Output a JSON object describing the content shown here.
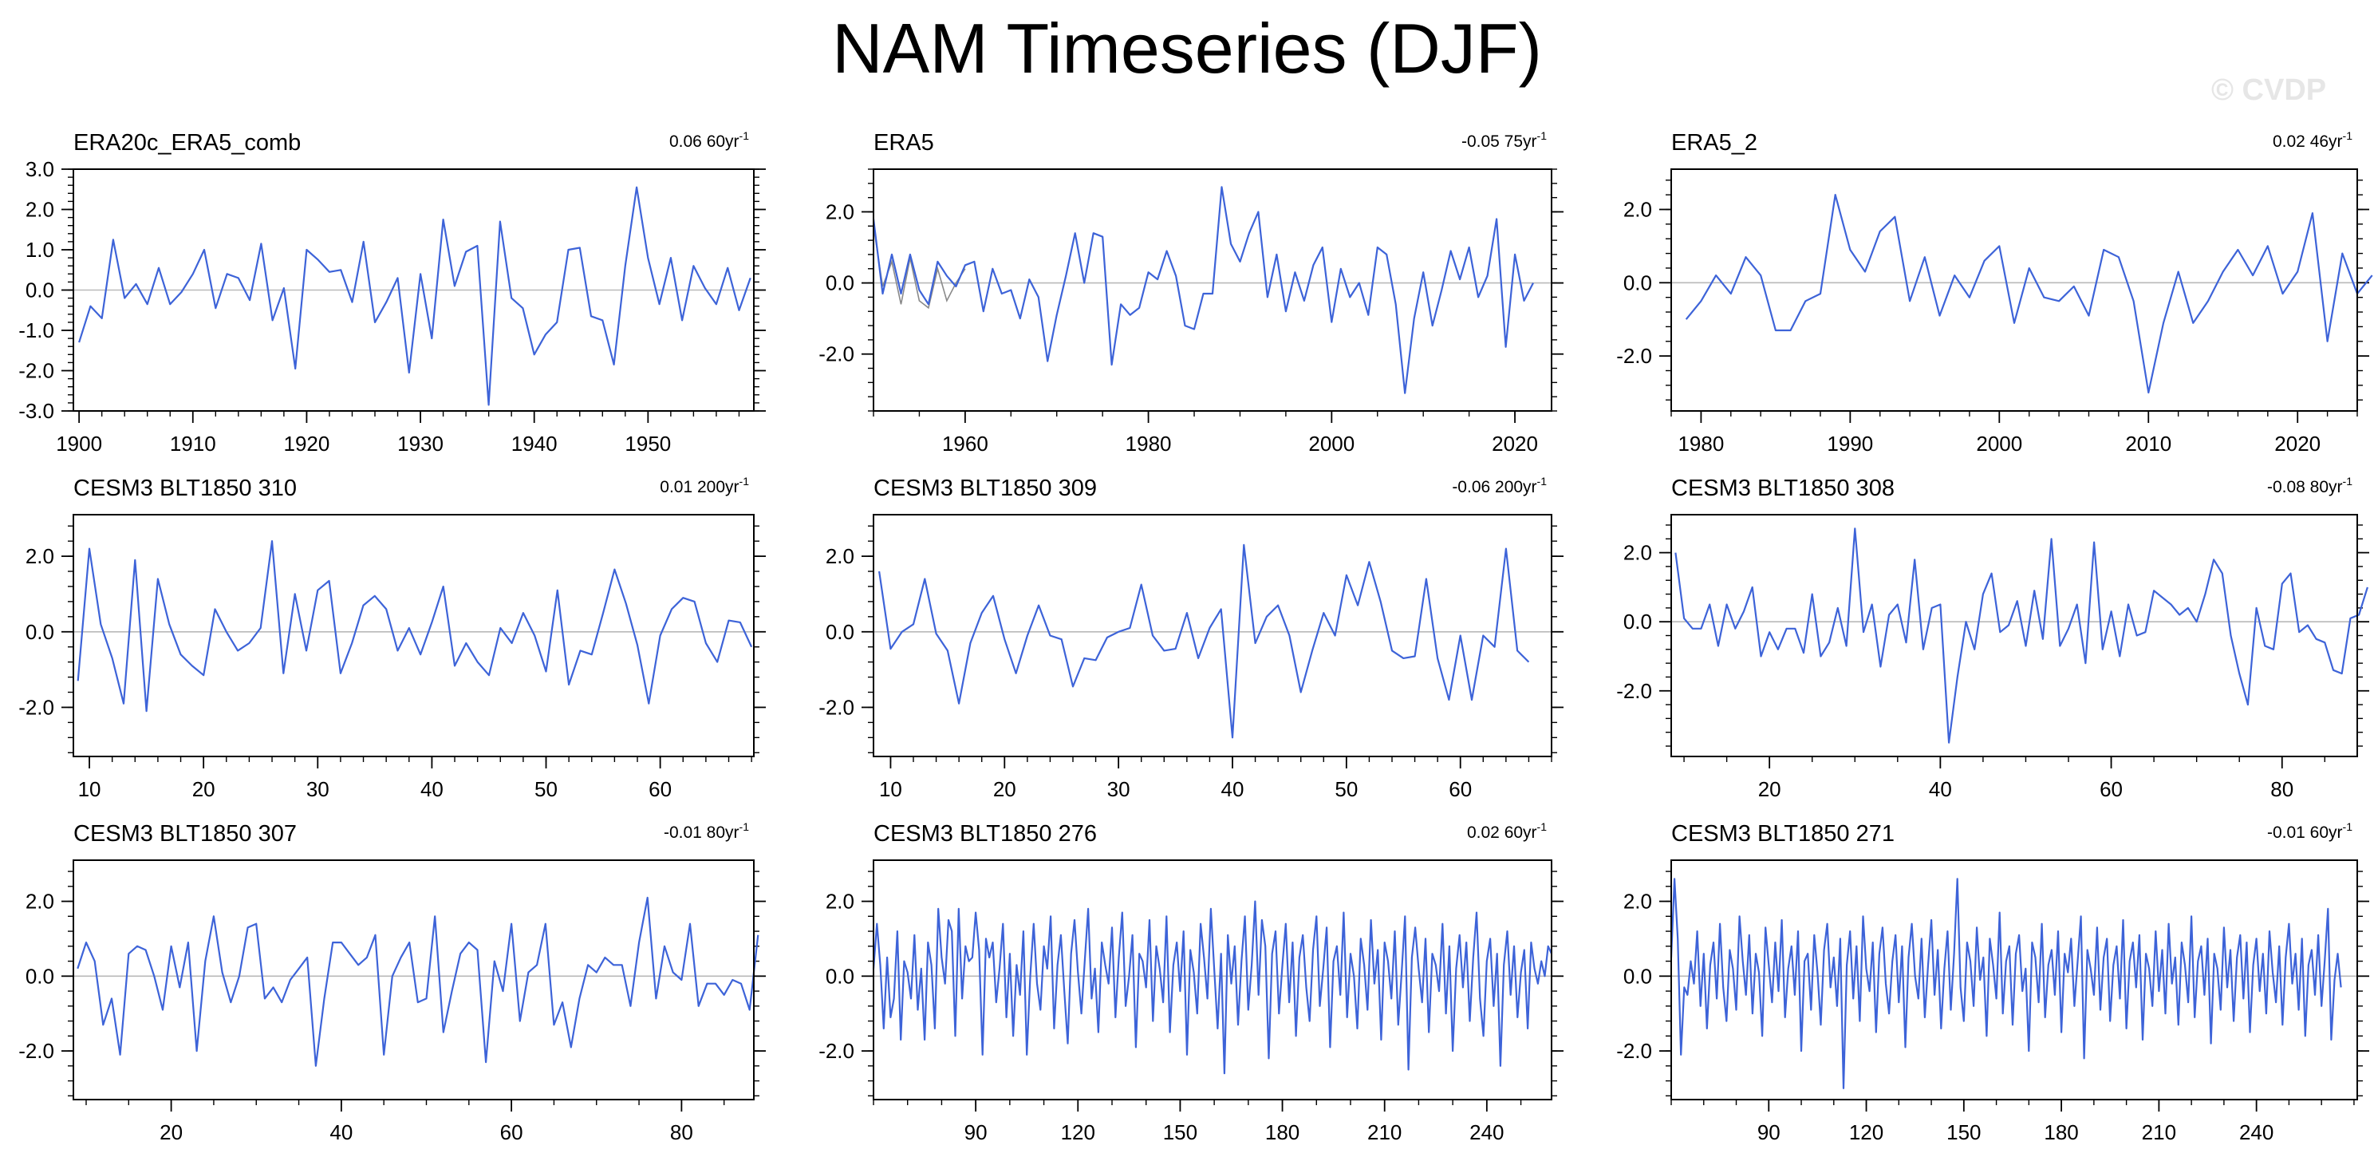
{
  "title": "NAM Timeseries (DJF)",
  "watermark": "© CVDP",
  "colors": {
    "line": "#3d63d8",
    "zero": "#b9b9b9",
    "axis": "#000000"
  },
  "chart_data": [
    {
      "type": "line",
      "name": "ERA20c_ERA5_comb",
      "trend_value": "0.06 60yr",
      "trend_unit_exp": "-1",
      "x_start": 1900,
      "x_step": 1,
      "xlim": [
        1899.5,
        1959.3
      ],
      "ylim": [
        -3.0,
        3.0
      ],
      "y_ticks": [
        -3.0,
        -2.0,
        -1.0,
        0.0,
        1.0,
        2.0,
        3.0
      ],
      "y_tick_labels": [
        "-3.0",
        "-2.0",
        "-1.0",
        "0.0",
        "1.0",
        "2.0",
        "3.0"
      ],
      "y_minor": 0.2,
      "x_ticks": [
        1900,
        1910,
        1920,
        1930,
        1940,
        1950
      ],
      "x_minor": 2,
      "values": [
        -1.3,
        -0.4,
        -0.7,
        1.25,
        -0.2,
        0.15,
        -0.35,
        0.55,
        -0.35,
        -0.05,
        0.4,
        1.0,
        -0.45,
        0.4,
        0.3,
        -0.25,
        1.15,
        -0.75,
        0.05,
        -1.95,
        1.0,
        0.75,
        0.45,
        0.5,
        -0.3,
        1.2,
        -0.8,
        -0.3,
        0.3,
        -2.05,
        0.4,
        -1.2,
        1.75,
        0.1,
        0.95,
        1.1,
        -2.85,
        1.7,
        -0.2,
        -0.45,
        -1.6,
        -1.1,
        -0.8,
        1.0,
        1.05,
        -0.65,
        -0.75,
        -1.85,
        0.6,
        2.55,
        0.8,
        -0.35,
        0.8,
        -0.75,
        0.6,
        0.05,
        -0.35,
        0.55,
        -0.5,
        0.3
      ]
    },
    {
      "type": "line",
      "name": "ERA5",
      "trend_value": "-0.05 75yr",
      "trend_unit_exp": "-1",
      "x_start": 1950,
      "x_step": 1,
      "xlim": [
        1950,
        2024
      ],
      "ylim": [
        -3.6,
        3.2
      ],
      "y_ticks": [
        -2.0,
        0.0,
        2.0
      ],
      "y_tick_labels": [
        "-2.0",
        "0.0",
        "2.0"
      ],
      "y_minor": 0.4,
      "x_ticks": [
        1960,
        1980,
        2000,
        2020
      ],
      "x_minor": 5,
      "values": [
        1.8,
        -0.3,
        0.8,
        -0.3,
        0.8,
        -0.2,
        -0.6,
        0.6,
        0.2,
        -0.1,
        0.5,
        0.6,
        -0.8,
        0.4,
        -0.3,
        -0.2,
        -1.0,
        0.1,
        -0.4,
        -2.2,
        -0.9,
        0.2,
        1.4,
        0.0,
        1.4,
        1.3,
        -2.3,
        -0.6,
        -0.9,
        -0.7,
        0.3,
        0.1,
        0.9,
        0.2,
        -1.2,
        -1.3,
        -0.3,
        -0.3,
        2.7,
        1.1,
        0.6,
        1.4,
        2.0,
        -0.4,
        0.8,
        -0.8,
        0.3,
        -0.5,
        0.5,
        1.0,
        -1.1,
        0.4,
        -0.4,
        0.0,
        -0.9,
        1.0,
        0.8,
        -0.6,
        -3.1,
        -1.0,
        0.3,
        -1.2,
        -0.2,
        0.9,
        0.1,
        1.0,
        -0.4,
        0.2,
        1.8,
        -1.8,
        0.8,
        -0.5,
        0.0
      ],
      "values2": [
        1.6,
        -0.1,
        0.6,
        -0.6,
        0.7,
        -0.5,
        -0.7,
        0.4,
        -0.5,
        0.0,
        0.4
      ]
    },
    {
      "type": "line",
      "name": "ERA5_2",
      "trend_value": "0.02 46yr",
      "trend_unit_exp": "-1",
      "x_start": 1979,
      "x_step": 1,
      "xlim": [
        1978,
        2024
      ],
      "ylim": [
        -3.5,
        3.1
      ],
      "y_ticks": [
        -2.0,
        0.0,
        2.0
      ],
      "y_tick_labels": [
        "-2.0",
        "0.0",
        "2.0"
      ],
      "y_minor": 0.4,
      "x_ticks": [
        1980,
        1990,
        2000,
        2010,
        2020
      ],
      "x_minor": 2,
      "values": [
        -1.0,
        -0.5,
        0.2,
        -0.3,
        0.7,
        0.2,
        -1.3,
        -1.3,
        -0.5,
        -0.3,
        2.4,
        0.9,
        0.3,
        1.4,
        1.8,
        -0.5,
        0.7,
        -0.9,
        0.2,
        -0.4,
        0.6,
        1.0,
        -1.1,
        0.4,
        -0.4,
        -0.5,
        -0.1,
        -0.9,
        0.9,
        0.7,
        -0.5,
        -3.0,
        -1.1,
        0.3,
        -1.1,
        -0.5,
        0.3,
        0.9,
        0.2,
        1.0,
        -0.3,
        0.3,
        1.9,
        -1.6,
        0.8,
        -0.3,
        0.2
      ]
    },
    {
      "type": "line",
      "name": "CESM3 BLT1850 310",
      "trend_value": "0.01 200yr",
      "trend_unit_exp": "-1",
      "x_start": 9,
      "x_step": 1,
      "xlim": [
        8.6,
        68.2
      ],
      "ylim": [
        -3.3,
        3.1
      ],
      "y_ticks": [
        -2.0,
        0.0,
        2.0
      ],
      "y_tick_labels": [
        "-2.0",
        "0.0",
        "2.0"
      ],
      "y_minor": 0.4,
      "x_ticks": [
        10,
        20,
        30,
        40,
        50,
        60
      ],
      "x_minor": 2,
      "values": [
        -1.3,
        2.2,
        0.2,
        -0.7,
        -1.9,
        1.9,
        -2.1,
        1.4,
        0.2,
        -0.6,
        -0.9,
        -1.15,
        0.6,
        0.0,
        -0.5,
        -0.3,
        0.1,
        2.4,
        -1.1,
        1.0,
        -0.5,
        1.1,
        1.35,
        -1.1,
        -0.3,
        0.7,
        0.95,
        0.6,
        -0.5,
        0.1,
        -0.6,
        0.25,
        1.2,
        -0.9,
        -0.3,
        -0.8,
        -1.15,
        0.1,
        -0.3,
        0.5,
        -0.1,
        -1.05,
        1.1,
        -1.4,
        -0.5,
        -0.6,
        0.5,
        1.65,
        0.75,
        -0.35,
        -1.9,
        -0.1,
        0.6,
        0.9,
        0.8,
        -0.3,
        -0.8,
        0.3,
        0.25,
        -0.4
      ]
    },
    {
      "type": "line",
      "name": "CESM3 BLT1850 309",
      "trend_value": "-0.06 200yr",
      "trend_unit_exp": "-1",
      "x_start": 9,
      "x_step": 1,
      "xlim": [
        8.5,
        68
      ],
      "ylim": [
        -3.3,
        3.1
      ],
      "y_ticks": [
        -2.0,
        0.0,
        2.0
      ],
      "y_tick_labels": [
        "-2.0",
        "0.0",
        "2.0"
      ],
      "y_minor": 0.4,
      "x_ticks": [
        10,
        20,
        30,
        40,
        50,
        60
      ],
      "x_minor": 2,
      "values": [
        1.6,
        -0.45,
        0.0,
        0.2,
        1.4,
        -0.05,
        -0.5,
        -1.9,
        -0.3,
        0.5,
        0.95,
        -0.2,
        -1.1,
        -0.1,
        0.7,
        -0.1,
        -0.2,
        -1.45,
        -0.7,
        -0.75,
        -0.15,
        0.0,
        0.1,
        1.25,
        -0.1,
        -0.5,
        -0.45,
        0.5,
        -0.7,
        0.1,
        0.6,
        -2.8,
        2.3,
        -0.3,
        0.4,
        0.7,
        -0.1,
        -1.6,
        -0.5,
        0.5,
        -0.1,
        1.5,
        0.7,
        1.85,
        0.8,
        -0.5,
        -0.7,
        -0.65,
        1.4,
        -0.7,
        -1.8,
        -0.1,
        -1.8,
        -0.1,
        -0.4,
        2.2,
        -0.5,
        -0.8
      ]
    },
    {
      "type": "line",
      "name": "CESM3 BLT1850 308",
      "trend_value": "-0.08 80yr",
      "trend_unit_exp": "-1",
      "x_start": 9,
      "x_step": 1,
      "xlim": [
        8.5,
        88.8
      ],
      "ylim": [
        -3.9,
        3.1
      ],
      "y_ticks": [
        -2.0,
        0.0,
        2.0
      ],
      "y_tick_labels": [
        "-2.0",
        "0.0",
        "2.0"
      ],
      "y_minor": 0.4,
      "x_ticks": [
        20,
        40,
        60,
        80
      ],
      "x_minor": 5,
      "values": [
        2.0,
        0.1,
        -0.2,
        -0.2,
        0.5,
        -0.7,
        0.5,
        -0.2,
        0.3,
        1.0,
        -1.0,
        -0.3,
        -0.8,
        -0.2,
        -0.2,
        -0.9,
        0.8,
        -1.0,
        -0.6,
        0.4,
        -0.7,
        2.7,
        -0.3,
        0.5,
        -1.3,
        0.2,
        0.5,
        -0.6,
        1.8,
        -0.8,
        0.4,
        0.5,
        -3.5,
        -1.6,
        0.0,
        -0.8,
        0.8,
        1.4,
        -0.3,
        -0.1,
        0.6,
        -0.7,
        0.9,
        -0.5,
        2.4,
        -0.7,
        -0.2,
        0.5,
        -1.2,
        2.3,
        -0.8,
        0.3,
        -1.0,
        0.5,
        -0.4,
        -0.3,
        0.9,
        0.7,
        0.5,
        0.2,
        0.4,
        0.0,
        0.8,
        1.8,
        1.4,
        -0.4,
        -1.5,
        -2.4,
        0.4,
        -0.7,
        -0.8,
        1.1,
        1.4,
        -0.3,
        -0.1,
        -0.5,
        -0.6,
        -1.4,
        -1.5,
        0.1,
        0.2,
        1.0
      ]
    },
    {
      "type": "line",
      "name": "CESM3 BLT1850 307",
      "trend_value": "-0.01 80yr",
      "trend_unit_exp": "-1",
      "x_start": 9,
      "x_step": 1,
      "xlim": [
        8.5,
        88.5
      ],
      "ylim": [
        -3.3,
        3.1
      ],
      "y_ticks": [
        -2.0,
        0.0,
        2.0
      ],
      "y_tick_labels": [
        "-2.0",
        "0.0",
        "2.0"
      ],
      "y_minor": 0.4,
      "x_ticks": [
        20,
        40,
        60,
        80
      ],
      "x_minor": 5,
      "values": [
        0.2,
        0.9,
        0.4,
        -1.3,
        -0.6,
        -2.1,
        0.6,
        0.8,
        0.7,
        0.0,
        -0.9,
        0.8,
        -0.3,
        0.9,
        -2.0,
        0.4,
        1.6,
        0.1,
        -0.7,
        0.0,
        1.3,
        1.4,
        -0.6,
        -0.3,
        -0.7,
        -0.1,
        0.2,
        0.5,
        -2.4,
        -0.6,
        0.9,
        0.9,
        0.6,
        0.3,
        0.5,
        1.1,
        -2.1,
        0.0,
        0.5,
        0.9,
        -0.7,
        -0.6,
        1.6,
        -1.5,
        -0.4,
        0.6,
        0.9,
        0.7,
        -2.3,
        0.4,
        -0.4,
        1.4,
        -1.2,
        0.1,
        0.3,
        1.4,
        -1.3,
        -0.7,
        -1.9,
        -0.6,
        0.3,
        0.1,
        0.5,
        0.3,
        0.3,
        -0.8,
        0.9,
        2.1,
        -0.6,
        0.8,
        0.1,
        -0.1,
        1.4,
        -0.8,
        -0.2,
        -0.2,
        -0.5,
        -0.1,
        -0.2,
        -0.9,
        1.1
      ]
    },
    {
      "type": "line",
      "name": "CESM3 BLT1850 276",
      "trend_value": "0.02 60yr",
      "trend_unit_exp": "-1",
      "x_start": 60,
      "x_step": 1,
      "xlim": [
        60,
        259
      ],
      "ylim": [
        -3.3,
        3.1
      ],
      "y_ticks": [
        -2.0,
        0.0,
        2.0
      ],
      "y_tick_labels": [
        "-2.0",
        "0.0",
        "2.0"
      ],
      "y_minor": 0.4,
      "x_ticks": [
        90,
        120,
        150,
        180,
        210,
        240
      ],
      "x_minor": 10,
      "values": [
        0.2,
        1.4,
        0.3,
        -1.4,
        0.5,
        -1.1,
        -0.6,
        1.2,
        -1.7,
        0.4,
        0.1,
        -0.6,
        1.1,
        -0.9,
        0.2,
        -1.7,
        0.9,
        0.3,
        -1.4,
        1.8,
        0.5,
        -0.2,
        1.5,
        1.2,
        -1.6,
        1.8,
        -0.6,
        0.8,
        0.4,
        0.5,
        1.7,
        0.7,
        -2.1,
        1.0,
        0.5,
        0.9,
        -0.7,
        0.2,
        1.4,
        -1.1,
        0.6,
        -1.6,
        0.3,
        -0.5,
        1.2,
        -2.1,
        0.0,
        1.4,
        -0.2,
        -0.9,
        0.8,
        0.2,
        1.6,
        -1.4,
        0.3,
        1.1,
        -0.4,
        -1.8,
        0.6,
        1.5,
        0.1,
        -1.0,
        0.4,
        1.8,
        -0.6,
        0.2,
        -1.5,
        0.9,
        0.3,
        -0.2,
        1.3,
        -1.1,
        0.5,
        1.7,
        -0.8,
        0.0,
        1.1,
        -1.9,
        0.6,
        0.4,
        -0.3,
        1.5,
        -1.2,
        0.8,
        0.2,
        -0.7,
        1.6,
        -1.5,
        0.3,
        0.9,
        -0.4,
        1.2,
        -2.1,
        0.7,
        0.1,
        -1.0,
        1.4,
        0.5,
        -0.6,
        1.8,
        0.2,
        -1.4,
        0.6,
        -2.6,
        1.1,
        -0.2,
        0.8,
        -1.3,
        0.4,
        1.6,
        -0.9,
        0.3,
        2.0,
        -0.5,
        1.5,
        0.8,
        -2.2,
        0.6,
        1.2,
        -1.0,
        0.3,
        1.4,
        -0.7,
        0.9,
        -1.6,
        0.5,
        1.1,
        -0.3,
        -1.2,
        0.7,
        1.6,
        -0.8,
        0.2,
        1.3,
        -1.9,
        0.4,
        0.8,
        -0.5,
        1.7,
        -1.1,
        0.6,
        0.0,
        -1.4,
        1.0,
        0.3,
        -0.9,
        1.5,
        -0.2,
        0.7,
        -1.7,
        0.9,
        0.4,
        -0.6,
        1.2,
        -1.3,
        0.1,
        1.6,
        -2.5,
        0.5,
        1.3,
        0.2,
        -0.7,
        1.0,
        -1.5,
        0.6,
        0.3,
        -0.4,
        1.4,
        -1.0,
        0.8,
        -2.0,
        0.2,
        1.1,
        -0.3,
        0.9,
        -1.2,
        0.5,
        1.7,
        -0.6,
        -1.6,
        0.4,
        1.0,
        -0.8,
        0.6,
        -2.4,
        0.3,
        1.2,
        -0.5,
        0.8,
        -1.1,
        0.1,
        0.7,
        -1.4,
        0.9,
        0.2,
        -0.2,
        0.4,
        0.0,
        0.8,
        0.6
      ]
    },
    {
      "type": "line",
      "name": "CESM3 BLT1850 271",
      "trend_value": "-0.01 60yr",
      "trend_unit_exp": "-1",
      "x_start": 60,
      "x_step": 1,
      "xlim": [
        60,
        271
      ],
      "ylim": [
        -3.3,
        3.1
      ],
      "y_ticks": [
        -2.0,
        0.0,
        2.0
      ],
      "y_tick_labels": [
        "-2.0",
        "0.0",
        "2.0"
      ],
      "y_minor": 0.4,
      "x_ticks": [
        90,
        120,
        150,
        180,
        210,
        240
      ],
      "x_minor": 10,
      "values": [
        0.5,
        2.6,
        1.0,
        -2.1,
        -0.3,
        -0.5,
        0.4,
        -0.2,
        1.2,
        -0.8,
        0.6,
        -1.4,
        0.3,
        0.9,
        -0.6,
        1.4,
        -0.3,
        -1.2,
        0.7,
        0.2,
        -0.9,
        1.6,
        0.4,
        -0.5,
        1.1,
        -1.0,
        0.6,
        0.1,
        -1.6,
        1.3,
        0.3,
        -0.7,
        0.9,
        -0.4,
        1.5,
        -1.1,
        0.2,
        0.8,
        -0.5,
        1.2,
        -2.0,
        0.4,
        0.6,
        -0.9,
        1.1,
        0.1,
        -1.3,
        0.7,
        1.4,
        -0.3,
        0.5,
        -0.8,
        1.0,
        -3.0,
        0.3,
        1.2,
        -0.6,
        0.8,
        -1.2,
        1.6,
        0.2,
        -0.4,
        0.9,
        -1.5,
        0.6,
        1.3,
        -0.2,
        -1.0,
        0.4,
        1.1,
        -0.7,
        0.8,
        -1.9,
        0.5,
        1.4,
        0.0,
        -0.6,
        1.0,
        -1.1,
        0.3,
        1.5,
        -0.5,
        0.7,
        -1.4,
        0.2,
        1.2,
        -0.9,
        0.6,
        2.6,
        -0.3,
        -1.2,
        0.9,
        0.4,
        -0.8,
        1.3,
        -0.1,
        0.5,
        -1.6,
        1.0,
        0.3,
        -0.6,
        1.7,
        -1.0,
        0.4,
        0.8,
        -1.3,
        0.6,
        1.1,
        -0.4,
        0.2,
        -2.0,
        0.9,
        0.5,
        -0.7,
        1.4,
        -1.1,
        0.3,
        0.7,
        -0.5,
        1.2,
        -1.5,
        0.6,
        0.1,
        1.0,
        -0.8,
        0.4,
        1.6,
        -2.2,
        0.7,
        0.2,
        -0.5,
        1.3,
        -0.9,
        0.5,
        1.0,
        -1.2,
        0.3,
        0.8,
        -0.6,
        1.5,
        -1.4,
        0.4,
        0.9,
        -0.3,
        1.1,
        -1.7,
        0.6,
        0.2,
        -0.8,
        1.2,
        -0.4,
        0.7,
        -1.0,
        1.4,
        -0.2,
        0.5,
        -1.3,
        0.9,
        0.3,
        -0.7,
        1.6,
        -1.1,
        0.4,
        0.8,
        -0.5,
        1.0,
        -1.8,
        0.6,
        0.2,
        -0.9,
        1.3,
        -0.3,
        0.7,
        -1.2,
        0.5,
        1.1,
        -0.6,
        0.9,
        -1.5,
        0.3,
        1.0,
        -0.4,
        0.6,
        -1.0,
        1.2,
        0.1,
        -0.7,
        0.8,
        -1.3,
        0.5,
        1.4,
        -0.2,
        0.6,
        -0.9,
        1.0,
        -1.6,
        0.3,
        0.7,
        -0.5,
        1.1,
        -0.8,
        0.4,
        1.8,
        -1.7,
        -0.1,
        0.6,
        -0.3
      ]
    }
  ]
}
